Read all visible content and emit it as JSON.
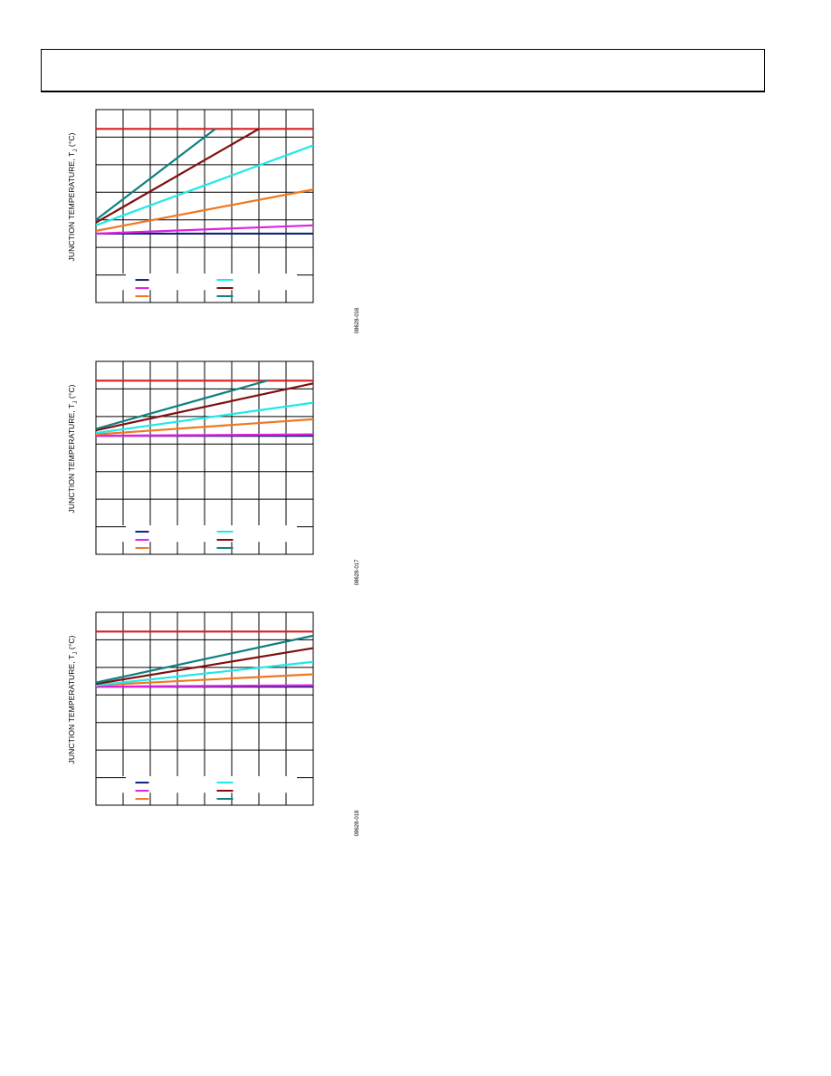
{
  "header": {
    "title": ""
  },
  "colors": {
    "grid": "#000000",
    "limit": "#d42020",
    "s1": "#10207a",
    "s2": "#e020e0",
    "s3": "#f07820",
    "s4": "#20e8e8",
    "s5": "#801010",
    "s6": "#108080"
  },
  "chart_data": [
    {
      "type": "line",
      "ylabel": "JUNCTION TEMPERATURE, T_J (°C)",
      "ylabel_main": "JUNCTION TEMPERATURE, T",
      "ylabel_sub": "J",
      "ylabel_unit": " (°C)",
      "fig_code": "08628-016",
      "xlim": [
        0,
        8
      ],
      "ylim": [
        0,
        7
      ],
      "series": [
        {
          "color_key": "limit",
          "x": [
            0,
            8
          ],
          "y": [
            6.3,
            6.3
          ]
        },
        {
          "color_key": "s1",
          "x": [
            0,
            8
          ],
          "y": [
            2.5,
            2.5
          ]
        },
        {
          "color_key": "s2",
          "x": [
            0,
            8
          ],
          "y": [
            2.5,
            2.8
          ]
        },
        {
          "color_key": "s3",
          "x": [
            0,
            8
          ],
          "y": [
            2.6,
            4.1
          ]
        },
        {
          "color_key": "s4",
          "x": [
            0,
            8
          ],
          "y": [
            2.8,
            5.7
          ]
        },
        {
          "color_key": "s5",
          "x": [
            0,
            6
          ],
          "y": [
            2.9,
            6.3
          ]
        },
        {
          "color_key": "s6",
          "x": [
            0,
            4.4
          ],
          "y": [
            3.0,
            6.3
          ]
        }
      ]
    },
    {
      "type": "line",
      "ylabel": "JUNCTION TEMPERATURE, T_J (°C)",
      "ylabel_main": "JUNCTION TEMPERATURE, T",
      "ylabel_sub": "J",
      "ylabel_unit": " (°C)",
      "fig_code": "08628-017",
      "xlim": [
        0,
        8
      ],
      "ylim": [
        0,
        7
      ],
      "series": [
        {
          "color_key": "limit",
          "x": [
            0,
            8
          ],
          "y": [
            6.3,
            6.3
          ]
        },
        {
          "color_key": "s1",
          "x": [
            0,
            8
          ],
          "y": [
            4.3,
            4.3
          ]
        },
        {
          "color_key": "s2",
          "x": [
            0,
            8
          ],
          "y": [
            4.3,
            4.35
          ]
        },
        {
          "color_key": "s3",
          "x": [
            0,
            8
          ],
          "y": [
            4.35,
            4.9
          ]
        },
        {
          "color_key": "s4",
          "x": [
            0,
            8
          ],
          "y": [
            4.4,
            5.5
          ]
        },
        {
          "color_key": "s5",
          "x": [
            0,
            8
          ],
          "y": [
            4.5,
            6.2
          ]
        },
        {
          "color_key": "s6",
          "x": [
            0,
            6.3
          ],
          "y": [
            4.55,
            6.3
          ]
        }
      ]
    },
    {
      "type": "line",
      "ylabel": "JUNCTION TEMPERATURE, T_J (°C)",
      "ylabel_main": "JUNCTION TEMPERATURE, T",
      "ylabel_sub": "J",
      "ylabel_unit": " (°C)",
      "fig_code": "08628-018",
      "xlim": [
        0,
        8
      ],
      "ylim": [
        0,
        7
      ],
      "series": [
        {
          "color_key": "limit",
          "x": [
            0,
            8
          ],
          "y": [
            6.3,
            6.3
          ]
        },
        {
          "color_key": "s1",
          "x": [
            0,
            8
          ],
          "y": [
            4.3,
            4.3
          ]
        },
        {
          "color_key": "s2",
          "x": [
            0,
            8
          ],
          "y": [
            4.3,
            4.35
          ]
        },
        {
          "color_key": "s3",
          "x": [
            0,
            8
          ],
          "y": [
            4.35,
            4.75
          ]
        },
        {
          "color_key": "s4",
          "x": [
            0,
            8
          ],
          "y": [
            4.35,
            5.2
          ]
        },
        {
          "color_key": "s5",
          "x": [
            0,
            8
          ],
          "y": [
            4.4,
            5.7
          ]
        },
        {
          "color_key": "s6",
          "x": [
            0,
            8
          ],
          "y": [
            4.45,
            6.15
          ]
        }
      ]
    }
  ]
}
